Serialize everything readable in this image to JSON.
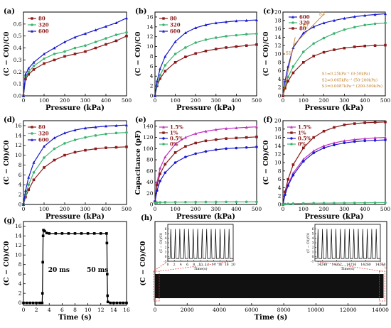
{
  "chart_data": [
    {
      "id": "a",
      "panel_label": "(a)",
      "type": "line",
      "xlabel": "Pressure (kPa)",
      "ylabel": "(C − C0)/C0",
      "xlim": [
        0,
        500
      ],
      "ylim": [
        0,
        0.7
      ],
      "xticks": [
        "0",
        "100",
        "200",
        "300",
        "400",
        "500"
      ],
      "yticks": [
        "0.0",
        "0.1",
        "0.2",
        "0.3",
        "0.4",
        "0.5",
        "0.6"
      ],
      "series": [
        {
          "name": "80",
          "color": "#8b1a1a",
          "marker": "square",
          "x": [
            0,
            10,
            25,
            50,
            100,
            150,
            200,
            250,
            300,
            350,
            400,
            450,
            500
          ],
          "y": [
            0,
            0.14,
            0.18,
            0.22,
            0.27,
            0.3,
            0.33,
            0.35,
            0.37,
            0.4,
            0.43,
            0.46,
            0.5
          ]
        },
        {
          "name": "320",
          "color": "#3cb371",
          "marker": "circle",
          "x": [
            0,
            10,
            25,
            50,
            100,
            150,
            200,
            250,
            300,
            350,
            400,
            450,
            500
          ],
          "y": [
            0,
            0.16,
            0.2,
            0.25,
            0.31,
            0.35,
            0.37,
            0.4,
            0.42,
            0.45,
            0.48,
            0.51,
            0.53
          ]
        },
        {
          "name": "600",
          "color": "#1a1acd",
          "marker": "triangle",
          "x": [
            0,
            10,
            25,
            50,
            100,
            150,
            200,
            250,
            300,
            350,
            400,
            450,
            500
          ],
          "y": [
            0,
            0.18,
            0.23,
            0.28,
            0.35,
            0.4,
            0.45,
            0.49,
            0.52,
            0.55,
            0.58,
            0.61,
            0.65
          ]
        }
      ]
    },
    {
      "id": "b",
      "panel_label": "(b)",
      "type": "line",
      "xlabel": "Pressure (kPa)",
      "ylabel": "(C − C0)/C0",
      "xlim": [
        0,
        500
      ],
      "ylim": [
        0,
        17
      ],
      "xticks": [
        "0",
        "100",
        "200",
        "300",
        "400",
        "500"
      ],
      "yticks": [
        "0",
        "2",
        "4",
        "6",
        "8",
        "10",
        "12",
        "14",
        "16"
      ],
      "series": [
        {
          "name": "80",
          "color": "#8b1a1a",
          "marker": "square",
          "x": [
            0,
            10,
            25,
            50,
            100,
            150,
            200,
            250,
            300,
            350,
            400,
            450,
            500
          ],
          "y": [
            0,
            2.0,
            3.5,
            5.0,
            6.8,
            7.9,
            8.6,
            9.1,
            9.5,
            9.8,
            10.0,
            10.2,
            10.4
          ]
        },
        {
          "name": "320",
          "color": "#3cb371",
          "marker": "circle",
          "x": [
            0,
            10,
            25,
            50,
            100,
            150,
            200,
            250,
            300,
            350,
            400,
            450,
            500
          ],
          "y": [
            0,
            2.3,
            4.2,
            6.2,
            8.5,
            9.8,
            10.8,
            11.4,
            11.8,
            12.1,
            12.3,
            12.5,
            12.6
          ]
        },
        {
          "name": "600",
          "color": "#1a1acd",
          "marker": "triangle",
          "x": [
            0,
            10,
            25,
            50,
            100,
            150,
            200,
            250,
            300,
            350,
            400,
            450,
            500
          ],
          "y": [
            0,
            3.0,
            5.5,
            8.0,
            11.0,
            12.8,
            13.8,
            14.4,
            14.8,
            15.0,
            15.2,
            15.3,
            15.4
          ]
        }
      ]
    },
    {
      "id": "c",
      "panel_label": "(c)",
      "type": "line",
      "xlabel": "Pressure (kPa)",
      "ylabel": "(C − C0)/C0",
      "xlim": [
        0,
        500
      ],
      "ylim": [
        0,
        20
      ],
      "xticks": [
        "0",
        "100",
        "200",
        "300",
        "400",
        "500"
      ],
      "yticks": [
        "0",
        "2",
        "4",
        "6",
        "8",
        "10",
        "12",
        "14",
        "16",
        "18",
        "20"
      ],
      "series": [
        {
          "name": "600",
          "color": "#1a1acd",
          "marker": "triangle",
          "x": [
            0,
            10,
            25,
            50,
            100,
            150,
            200,
            250,
            300,
            350,
            400,
            450,
            500
          ],
          "y": [
            0,
            3.5,
            7.0,
            11.5,
            15.0,
            16.5,
            17.4,
            18.0,
            18.5,
            18.9,
            19.2,
            19.4,
            19.6
          ]
        },
        {
          "name": "320",
          "color": "#3cb371",
          "marker": "circle",
          "x": [
            0,
            10,
            25,
            50,
            100,
            150,
            200,
            250,
            300,
            350,
            400,
            450,
            500
          ],
          "y": [
            0,
            2.2,
            4.5,
            7.0,
            10.5,
            12.5,
            13.8,
            14.9,
            15.8,
            16.4,
            16.9,
            17.2,
            17.4
          ]
        },
        {
          "name": "80",
          "color": "#8b1a1a",
          "marker": "square",
          "x": [
            0,
            10,
            25,
            50,
            100,
            150,
            200,
            250,
            300,
            350,
            400,
            450,
            500
          ],
          "y": [
            0,
            1.8,
            3.5,
            5.5,
            8.0,
            9.5,
            10.4,
            11.0,
            11.4,
            11.7,
            11.9,
            12.0,
            12.1
          ]
        }
      ],
      "annotations": [
        "S1",
        "S2",
        "S3",
        "S1=0.25kPa⁻¹ (0-50kPa)",
        "S2=0.065kPa⁻¹ (50-200kPa)",
        "S3=0.0087kPa⁻¹ (200-500kPa)"
      ]
    },
    {
      "id": "d",
      "panel_label": "(d)",
      "type": "line",
      "xlabel": "Pressure (kPa)",
      "ylabel": "(C − C0)/C0",
      "xlim": [
        0,
        500
      ],
      "ylim": [
        0,
        17
      ],
      "xticks": [
        "0",
        "100",
        "200",
        "300",
        "400",
        "500"
      ],
      "yticks": [
        "0",
        "2",
        "4",
        "6",
        "8",
        "10",
        "12",
        "14",
        "16"
      ],
      "series": [
        {
          "name": "80",
          "color": "#8b1a1a",
          "marker": "square",
          "x": [
            0,
            10,
            25,
            50,
            100,
            150,
            200,
            250,
            300,
            350,
            400,
            450,
            500
          ],
          "y": [
            0,
            1.5,
            3.0,
            5.0,
            7.5,
            9.0,
            10.0,
            10.6,
            11.0,
            11.3,
            11.5,
            11.6,
            11.7
          ]
        },
        {
          "name": "320",
          "color": "#3cb371",
          "marker": "circle",
          "x": [
            0,
            10,
            25,
            50,
            100,
            150,
            200,
            250,
            300,
            350,
            400,
            450,
            500
          ],
          "y": [
            0,
            2.0,
            4.0,
            6.5,
            9.5,
            11.3,
            12.4,
            13.1,
            13.6,
            14.0,
            14.3,
            14.5,
            14.6
          ]
        },
        {
          "name": "600",
          "color": "#1a1acd",
          "marker": "triangle",
          "x": [
            0,
            10,
            25,
            50,
            100,
            150,
            200,
            250,
            300,
            350,
            400,
            450,
            500
          ],
          "y": [
            0,
            2.8,
            5.5,
            8.5,
            11.8,
            13.5,
            14.5,
            15.1,
            15.5,
            15.7,
            15.9,
            16.0,
            16.1
          ]
        }
      ]
    },
    {
      "id": "e",
      "panel_label": "(e)",
      "type": "line",
      "xlabel": "Pressure (kPa)",
      "ylabel": "Capacitance (pF)",
      "xlim": [
        0,
        500
      ],
      "ylim": [
        0,
        150
      ],
      "xticks": [
        "0",
        "100",
        "200",
        "300",
        "400",
        "500"
      ],
      "yticks": [
        "0",
        "20",
        "40",
        "60",
        "80",
        "100",
        "120",
        "140"
      ],
      "series": [
        {
          "name": "1.5%",
          "color": "#c030c0",
          "marker": "triangle",
          "x": [
            0,
            10,
            25,
            50,
            100,
            150,
            200,
            250,
            300,
            350,
            400,
            450,
            500
          ],
          "y": [
            5,
            40,
            65,
            85,
            108,
            120,
            127,
            131,
            134,
            136,
            137,
            138,
            139
          ]
        },
        {
          "name": "1%",
          "color": "#8b1a1a",
          "marker": "square",
          "x": [
            0,
            10,
            25,
            50,
            100,
            150,
            200,
            250,
            300,
            350,
            400,
            450,
            500
          ],
          "y": [
            5,
            35,
            55,
            72,
            93,
            104,
            110,
            114,
            116,
            118,
            119,
            120,
            121
          ]
        },
        {
          "name": "0.5%",
          "color": "#1a1acd",
          "marker": "circle",
          "x": [
            0,
            10,
            25,
            50,
            100,
            150,
            200,
            250,
            300,
            350,
            400,
            450,
            500
          ],
          "y": [
            5,
            25,
            42,
            57,
            75,
            85,
            91,
            95,
            98,
            100,
            101,
            102,
            103
          ]
        },
        {
          "name": "0%",
          "color": "#3cb371",
          "marker": "circle",
          "x": [
            0,
            10,
            25,
            50,
            100,
            150,
            200,
            250,
            300,
            350,
            400,
            450,
            500
          ],
          "y": [
            3,
            3.5,
            3.8,
            4.0,
            4.2,
            4.3,
            4.4,
            4.5,
            4.5,
            4.6,
            4.6,
            4.7,
            4.7
          ]
        }
      ]
    },
    {
      "id": "f",
      "panel_label": "(f)",
      "type": "line",
      "xlabel": "Pressure (kPa)",
      "ylabel": "(C − C0)/C0",
      "xlim": [
        0,
        500
      ],
      "ylim": [
        0,
        20
      ],
      "xticks": [
        "0",
        "100",
        "200",
        "300",
        "400",
        "500"
      ],
      "yticks": [
        "0",
        "2",
        "4",
        "6",
        "8",
        "10",
        "12",
        "14",
        "16",
        "18",
        "20"
      ],
      "series": [
        {
          "name": "1.5%",
          "color": "#c030c0",
          "marker": "triangle",
          "x": [
            0,
            10,
            25,
            50,
            100,
            150,
            200,
            250,
            300,
            350,
            400,
            450,
            500
          ],
          "y": [
            0,
            2.5,
            4.8,
            7.5,
            10.8,
            12.8,
            14.0,
            14.7,
            15.2,
            15.5,
            15.7,
            15.9,
            16.0
          ]
        },
        {
          "name": "1%",
          "color": "#8b1a1a",
          "marker": "square",
          "x": [
            0,
            10,
            25,
            50,
            100,
            150,
            200,
            250,
            300,
            350,
            400,
            450,
            500
          ],
          "y": [
            0,
            3.0,
            6.0,
            9.5,
            13.5,
            16.0,
            17.5,
            18.4,
            19.0,
            19.3,
            19.5,
            19.6,
            19.7
          ]
        },
        {
          "name": "0.5%",
          "color": "#1a1acd",
          "marker": "circle",
          "x": [
            0,
            10,
            25,
            50,
            100,
            150,
            200,
            250,
            300,
            350,
            400,
            450,
            500
          ],
          "y": [
            0,
            2.3,
            4.5,
            7.0,
            10.3,
            12.3,
            13.5,
            14.2,
            14.7,
            15.0,
            15.2,
            15.3,
            15.4
          ]
        },
        {
          "name": "0%",
          "color": "#3cb371",
          "marker": "circle",
          "x": [
            0,
            10,
            25,
            50,
            100,
            150,
            200,
            250,
            300,
            350,
            400,
            450,
            500
          ],
          "y": [
            0,
            0.1,
            0.15,
            0.2,
            0.25,
            0.3,
            0.32,
            0.34,
            0.36,
            0.38,
            0.4,
            0.42,
            0.44
          ]
        }
      ]
    },
    {
      "id": "g",
      "panel_label": "(g)",
      "type": "line",
      "xlabel": "Time (s)",
      "ylabel": "(C − C0)/C0",
      "xlim": [
        0,
        16
      ],
      "ylim": [
        -0.5,
        17
      ],
      "xticks": [
        "0",
        "2",
        "4",
        "6",
        "8",
        "10",
        "12",
        "14",
        "16"
      ],
      "yticks": [
        "0",
        "2",
        "4",
        "6",
        "8",
        "10",
        "12",
        "14",
        "16"
      ],
      "series": [
        {
          "name": "",
          "color": "#000000",
          "marker": "square",
          "x": [
            0,
            0.5,
            1,
            1.5,
            2,
            2.5,
            2.9,
            2.95,
            3.0,
            3.05,
            3.1,
            3.3,
            3.6,
            4,
            5,
            6,
            7,
            8,
            9,
            10,
            11,
            12,
            12.9,
            12.95,
            13.0,
            13.05,
            13.1,
            13.5,
            14,
            14.5,
            15,
            15.5,
            16
          ],
          "y": [
            0,
            0,
            0,
            0,
            0,
            0,
            0,
            2.0,
            8.5,
            14.0,
            15.2,
            15.0,
            14.6,
            14.5,
            14.5,
            14.5,
            14.5,
            14.5,
            14.5,
            14.5,
            14.5,
            14.5,
            14.5,
            12.5,
            6.0,
            1.5,
            0.2,
            0,
            0,
            0,
            0,
            0,
            0
          ]
        }
      ],
      "annotations": [
        "20 ms",
        "50 ms"
      ]
    },
    {
      "id": "h",
      "panel_label": "(h)",
      "type": "line",
      "xlabel": "Time (s)",
      "ylabel": "(C − C0)/C0",
      "xlim": [
        0,
        14400
      ],
      "xticks": [
        "0",
        "2000",
        "4000",
        "6000",
        "8000",
        "10000",
        "12000",
        "14000"
      ],
      "description_series": "dense cyclic response",
      "insets": [
        {
          "id": "h-left",
          "xlabel": "Time(s)",
          "ylabel": "(C − C0)/C0",
          "xlim": [
            0,
            20
          ],
          "ylim": [
            -1,
            7
          ],
          "xticks": [
            "0",
            "2",
            "4",
            "6",
            "8",
            "10",
            "12",
            "14",
            "16",
            "18",
            "20"
          ],
          "yticks": [
            "-1",
            "0",
            "1",
            "2",
            "3",
            "4",
            "5",
            "6"
          ],
          "cycles": 14,
          "peak": 6.0,
          "base": -0.4
        },
        {
          "id": "h-right",
          "xlabel": "Time(s)",
          "ylabel": "(C − C0)/C0",
          "xlim": [
            14246,
            14264
          ],
          "ylim": [
            -1,
            7
          ],
          "xticks": [
            "14248",
            "14252",
            "14256",
            "14260",
            "14264"
          ],
          "yticks": [
            "-1",
            "0",
            "1",
            "2",
            "3",
            "4",
            "5",
            "6"
          ],
          "cycles": 14,
          "peak": 6.0,
          "base": -0.4
        }
      ]
    }
  ]
}
